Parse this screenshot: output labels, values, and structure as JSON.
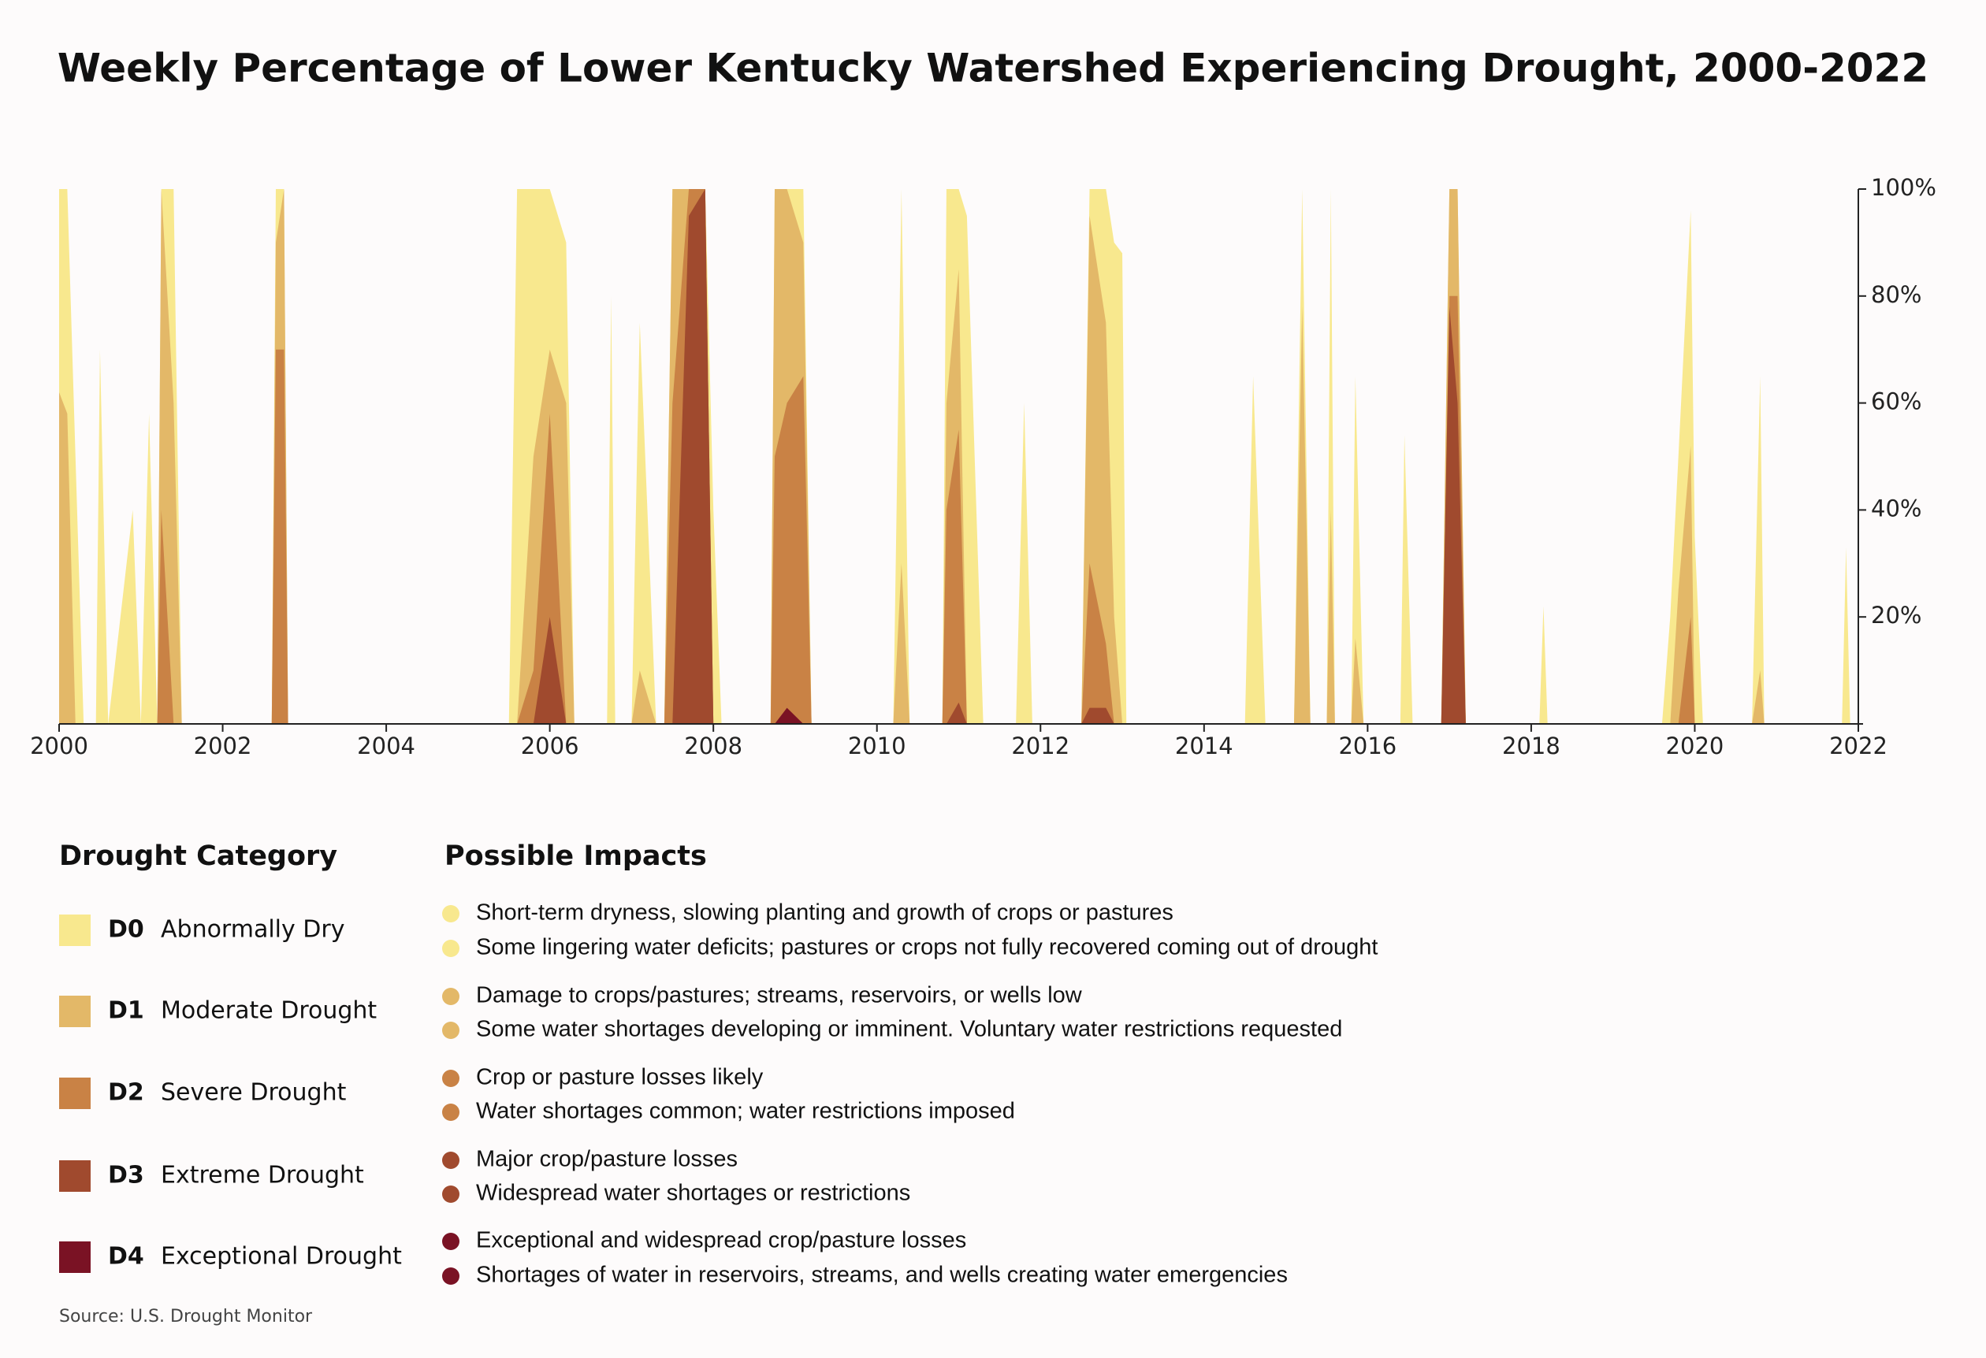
{
  "chart_data": {
    "type": "area",
    "title": "Weekly Percentage of Lower Kentucky Watershed Experiencing Drought, 2000-2022",
    "xlim": [
      2000,
      2022
    ],
    "xticks": [
      2000,
      2002,
      2004,
      2006,
      2008,
      2010,
      2012,
      2014,
      2016,
      2018,
      2020,
      2022
    ],
    "ylim": [
      0,
      100
    ],
    "yticks": [
      {
        "value": 20,
        "label": "20%"
      },
      {
        "value": 40,
        "label": "40%"
      },
      {
        "value": 60,
        "label": "60%"
      },
      {
        "value": 80,
        "label": "80%"
      },
      {
        "value": 100,
        "label": "100%"
      }
    ],
    "y_axis_side": "right",
    "legend_title": "Drought Category",
    "impacts_title": "Possible Impacts",
    "source": "Source: U.S. Drought Monitor",
    "x": [
      2000.0,
      2000.1,
      2000.2,
      2000.3,
      2000.45,
      2000.5,
      2000.6,
      2000.9,
      2001.0,
      2001.1,
      2001.2,
      2001.25,
      2001.4,
      2001.5,
      2002.6,
      2002.65,
      2002.75,
      2002.8,
      2005.5,
      2005.6,
      2005.8,
      2006.0,
      2006.2,
      2006.3,
      2006.7,
      2006.75,
      2006.8,
      2007.0,
      2007.1,
      2007.3,
      2007.4,
      2007.5,
      2007.7,
      2007.9,
      2008.0,
      2008.1,
      2008.7,
      2008.75,
      2008.9,
      2009.1,
      2009.2,
      2010.2,
      2010.3,
      2010.4,
      2010.8,
      2010.85,
      2011.0,
      2011.1,
      2011.3,
      2011.7,
      2011.8,
      2011.9,
      2012.5,
      2012.6,
      2012.8,
      2012.9,
      2013.0,
      2013.05,
      2014.5,
      2014.6,
      2014.75,
      2015.1,
      2015.2,
      2015.3,
      2015.5,
      2015.55,
      2015.6,
      2015.8,
      2015.85,
      2015.95,
      2016.4,
      2016.45,
      2016.55,
      2016.9,
      2017.0,
      2017.1,
      2017.2,
      2018.1,
      2018.15,
      2018.2,
      2019.6,
      2019.7,
      2019.8,
      2019.95,
      2020.0,
      2020.1,
      2020.7,
      2020.8,
      2020.85,
      2021.8,
      2021.85,
      2021.9,
      2022
    ],
    "series": [
      {
        "name": "D0",
        "label": "Abnormally Dry",
        "color": "#f8e88e",
        "impacts": [
          "Short-term dryness, slowing planting and growth of crops or pastures",
          "Some lingering water deficits; pastures or crops not fully recovered coming out of drought"
        ],
        "values": [
          100,
          100,
          50,
          0,
          0,
          70,
          0,
          40,
          0,
          58,
          0,
          100,
          100,
          0,
          0,
          100,
          100,
          0,
          0,
          100,
          100,
          100,
          90,
          0,
          0,
          80,
          0,
          0,
          75,
          0,
          0,
          100,
          100,
          100,
          40,
          0,
          0,
          100,
          100,
          100,
          0,
          0,
          100,
          0,
          0,
          100,
          100,
          95,
          0,
          0,
          60,
          0,
          0,
          100,
          100,
          90,
          88,
          0,
          0,
          65,
          0,
          0,
          100,
          0,
          0,
          100,
          0,
          0,
          65,
          0,
          0,
          54,
          0,
          0,
          100,
          100,
          0,
          0,
          22,
          0,
          0,
          20,
          50,
          96,
          35,
          0,
          0,
          65,
          0,
          0,
          33,
          0,
          0
        ]
      },
      {
        "name": "D1",
        "label": "Moderate Drought",
        "color": "#e3b868",
        "impacts": [
          "Damage to crops/pastures; streams, reservoirs, or wells low",
          "Some water shortages developing or imminent. Voluntary water restrictions requested"
        ],
        "values": [
          62,
          58,
          0,
          0,
          0,
          0,
          0,
          0,
          0,
          0,
          0,
          100,
          60,
          0,
          0,
          90,
          100,
          0,
          0,
          0,
          50,
          70,
          60,
          0,
          0,
          0,
          0,
          0,
          10,
          0,
          0,
          100,
          100,
          100,
          0,
          0,
          0,
          100,
          100,
          90,
          0,
          0,
          30,
          0,
          0,
          60,
          85,
          0,
          0,
          0,
          0,
          0,
          0,
          95,
          75,
          20,
          0,
          0,
          0,
          0,
          0,
          0,
          78,
          0,
          0,
          40,
          0,
          0,
          16,
          0,
          0,
          0,
          0,
          0,
          100,
          100,
          0,
          0,
          0,
          0,
          0,
          0,
          25,
          52,
          0,
          0,
          0,
          10,
          0,
          0,
          0,
          0,
          0
        ]
      },
      {
        "name": "D2",
        "label": "Severe Drought",
        "color": "#c98245",
        "impacts": [
          "Crop or pasture losses likely",
          "Water shortages common; water restrictions imposed"
        ],
        "values": [
          0,
          0,
          0,
          0,
          0,
          0,
          0,
          0,
          0,
          0,
          0,
          40,
          0,
          0,
          0,
          70,
          70,
          0,
          0,
          0,
          10,
          58,
          0,
          0,
          0,
          0,
          0,
          0,
          0,
          0,
          0,
          60,
          100,
          100,
          0,
          0,
          0,
          50,
          60,
          65,
          0,
          0,
          0,
          0,
          0,
          40,
          55,
          0,
          0,
          0,
          0,
          0,
          0,
          30,
          15,
          0,
          0,
          0,
          0,
          0,
          0,
          0,
          0,
          0,
          0,
          0,
          0,
          0,
          0,
          0,
          0,
          0,
          0,
          0,
          80,
          80,
          0,
          0,
          0,
          0,
          0,
          0,
          0,
          20,
          0,
          0,
          0,
          0,
          0,
          0,
          0,
          0,
          0
        ]
      },
      {
        "name": "D3",
        "label": "Extreme Drought",
        "color": "#a04a2e",
        "impacts": [
          "Major crop/pasture losses",
          "Widespread water shortages or restrictions"
        ],
        "values": [
          0,
          0,
          0,
          0,
          0,
          0,
          0,
          0,
          0,
          0,
          0,
          0,
          0,
          0,
          0,
          0,
          0,
          0,
          0,
          0,
          0,
          20,
          0,
          0,
          0,
          0,
          0,
          0,
          0,
          0,
          0,
          0,
          95,
          100,
          0,
          0,
          0,
          0,
          0,
          0,
          0,
          0,
          0,
          0,
          0,
          0,
          4,
          0,
          0,
          0,
          0,
          0,
          0,
          3,
          3,
          0,
          0,
          0,
          0,
          0,
          0,
          0,
          0,
          0,
          0,
          0,
          0,
          0,
          0,
          0,
          0,
          0,
          0,
          0,
          78,
          60,
          0,
          0,
          0,
          0,
          0,
          0,
          0,
          0,
          0,
          0,
          0,
          0,
          0,
          0,
          0,
          0,
          0
        ]
      },
      {
        "name": "D4",
        "label": "Exceptional Drought",
        "color": "#7a1224",
        "impacts": [
          "Exceptional and widespread crop/pasture losses",
          "Shortages of water in reservoirs, streams, and wells creating water emergencies"
        ],
        "values": [
          0,
          0,
          0,
          0,
          0,
          0,
          0,
          0,
          0,
          0,
          0,
          0,
          0,
          0,
          0,
          0,
          0,
          0,
          0,
          0,
          0,
          0,
          0,
          0,
          0,
          0,
          0,
          0,
          0,
          0,
          0,
          0,
          0,
          0,
          0,
          0,
          0,
          0,
          3,
          0,
          0,
          0,
          0,
          0,
          0,
          0,
          0,
          0,
          0,
          0,
          0,
          0,
          0,
          0,
          0,
          0,
          0,
          0,
          0,
          0,
          0,
          0,
          0,
          0,
          0,
          0,
          0,
          0,
          0,
          0,
          0,
          0,
          0,
          0,
          0,
          0,
          0,
          0,
          0,
          0,
          0,
          0,
          0,
          0,
          0,
          0,
          0,
          0,
          0,
          0,
          0,
          0,
          0
        ]
      }
    ]
  }
}
